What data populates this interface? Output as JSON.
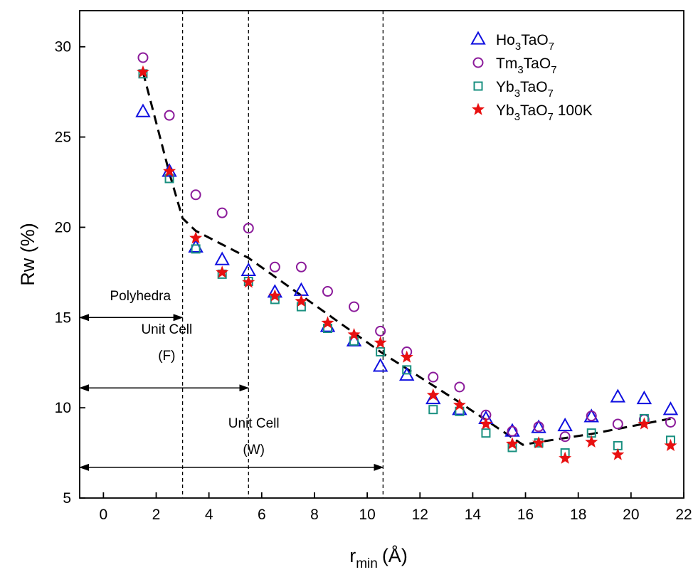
{
  "chart_data": {
    "type": "scatter",
    "xlabel": {
      "main": "r",
      "sub": "min",
      "unit": "(Å)"
    },
    "ylabel": "Rw (%)",
    "xlim": [
      -0.9,
      22
    ],
    "ylim": [
      5,
      32
    ],
    "xticks": [
      0,
      2,
      4,
      6,
      8,
      10,
      12,
      14,
      16,
      18,
      20,
      22
    ],
    "yticks": [
      5,
      10,
      15,
      20,
      25,
      30
    ],
    "grid": false,
    "legend_position": "top-right",
    "series": [
      {
        "name": {
          "pre": "Ho",
          "s1": "3",
          "mid": "TaO",
          "s2": "7",
          "post": ""
        },
        "marker": "triangle",
        "color": "#1010e0",
        "x": [
          1.5,
          2.5,
          3.5,
          4.5,
          5.5,
          6.5,
          7.5,
          8.5,
          9.5,
          10.5,
          11.5,
          12.5,
          13.5,
          14.5,
          15.5,
          16.5,
          17.5,
          18.5,
          19.5,
          20.5,
          21.5
        ],
        "y": [
          26.4,
          23.1,
          18.9,
          18.2,
          17.6,
          16.4,
          16.5,
          14.5,
          13.7,
          12.3,
          11.8,
          10.5,
          9.9,
          9.4,
          8.7,
          8.9,
          9.0,
          9.5,
          10.6,
          10.5,
          9.9
        ]
      },
      {
        "name": {
          "pre": "Tm",
          "s1": "3",
          "mid": "TaO",
          "s2": "7",
          "post": ""
        },
        "marker": "circle",
        "color": "#8b1a9a",
        "x": [
          1.5,
          2.5,
          3.5,
          4.5,
          5.5,
          6.5,
          7.5,
          8.5,
          9.5,
          10.5,
          11.5,
          12.5,
          13.5,
          14.5,
          15.5,
          16.5,
          17.5,
          18.5,
          19.5,
          20.5,
          21.5
        ],
        "y": [
          29.4,
          26.2,
          21.8,
          20.8,
          19.95,
          17.8,
          17.8,
          16.45,
          15.6,
          14.25,
          13.1,
          11.7,
          11.15,
          9.6,
          8.7,
          8.95,
          8.4,
          9.55,
          9.1,
          9.35,
          9.2
        ]
      },
      {
        "name": {
          "pre": "Yb",
          "s1": "3",
          "mid": "TaO",
          "s2": "7",
          "post": ""
        },
        "marker": "square",
        "color": "#1a9080",
        "x": [
          1.5,
          2.5,
          3.5,
          4.5,
          5.5,
          6.5,
          7.5,
          8.5,
          9.5,
          10.5,
          11.5,
          12.5,
          13.5,
          14.5,
          15.5,
          16.5,
          17.5,
          18.5,
          19.5,
          20.5,
          21.5
        ],
        "y": [
          28.5,
          22.7,
          18.8,
          17.4,
          17.0,
          16.0,
          15.6,
          14.4,
          13.7,
          13.1,
          12.1,
          9.9,
          9.8,
          8.6,
          7.8,
          8.05,
          7.5,
          8.6,
          7.9,
          9.4,
          8.2
        ]
      },
      {
        "name": {
          "pre": "Yb",
          "s1": "3",
          "mid": "TaO",
          "s2": "7",
          "post": " 100K"
        },
        "marker": "star",
        "color": "#e81010",
        "x": [
          1.5,
          2.5,
          3.5,
          4.5,
          5.5,
          6.5,
          7.5,
          8.5,
          9.5,
          10.5,
          11.5,
          12.5,
          13.5,
          14.5,
          15.5,
          16.5,
          17.5,
          18.5,
          19.5,
          20.5,
          21.5
        ],
        "y": [
          28.6,
          23.1,
          19.4,
          17.5,
          16.95,
          16.2,
          15.9,
          14.7,
          14.05,
          13.6,
          12.8,
          10.7,
          10.15,
          9.1,
          8.0,
          8.05,
          7.2,
          8.1,
          7.4,
          9.1,
          7.9
        ]
      }
    ],
    "trend_line": {
      "x": [
        1.5,
        2.5,
        3.0,
        3.5,
        5.5,
        10.6,
        13.5,
        15.9,
        16.5,
        18.5,
        21.5
      ],
      "y": [
        28.6,
        23.0,
        20.5,
        19.8,
        18.3,
        13.0,
        10.3,
        7.95,
        8.1,
        8.55,
        9.4
      ]
    },
    "vlines": [
      3.0,
      5.5,
      10.6
    ],
    "annotations": [
      {
        "label": [
          "Polyhedra"
        ],
        "label_x": 1.4,
        "label_y": 15.95,
        "arrow_y": 15.0,
        "from": -0.9,
        "to": 3.0
      },
      {
        "label": [
          "Unit Cell",
          "(F)"
        ],
        "label_x": 2.4,
        "label_y": 14.1,
        "arrow_y": 11.1,
        "from": -0.9,
        "to": 5.5
      },
      {
        "label": [
          "Unit Cell",
          "(W)"
        ],
        "label_x": 5.7,
        "label_y": 8.9,
        "arrow_y": 6.7,
        "from": -0.9,
        "to": 10.6
      }
    ]
  }
}
